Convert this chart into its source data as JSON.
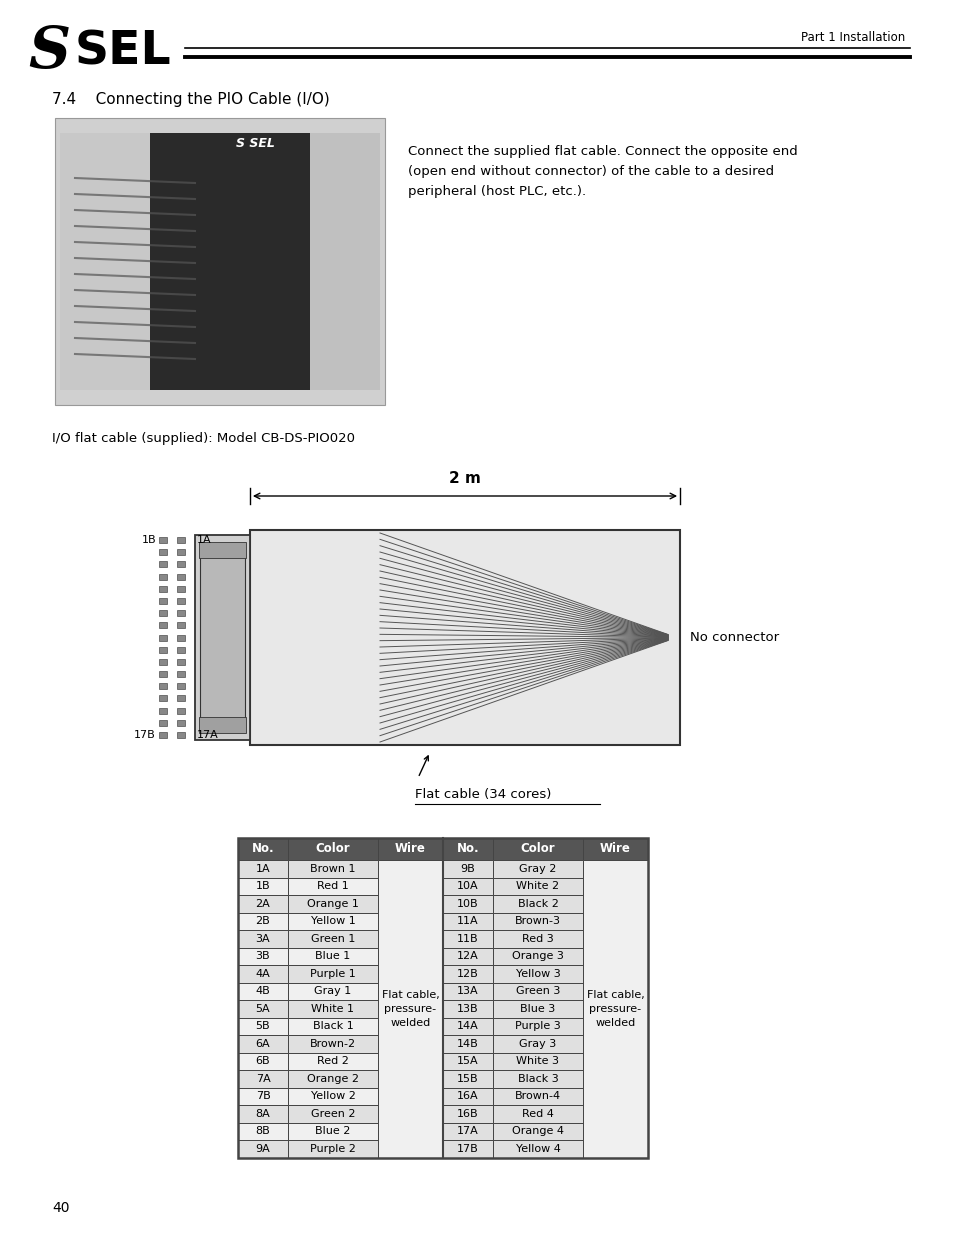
{
  "page_number": "40",
  "header_text": "Part 1 Installation",
  "section_title": "7.4    Connecting the PIO Cable (I/O)",
  "body_text": "Connect the supplied flat cable. Connect the opposite end\n(open end without connector) of the cable to a desired\nperipheral (host PLC, etc.).",
  "cable_label": "I/O flat cable (supplied): Model CB-DS-PIO020",
  "dim_label": "2 m",
  "label_1b": "1B",
  "label_1a": "1A",
  "label_17b": "17B",
  "label_17a": "17A",
  "no_connector_label": "No connector",
  "flat_cable_label": "Flat cable (34 cores)",
  "table_headers_left": [
    "No.",
    "Color",
    "Wire"
  ],
  "table_headers_right": [
    "No.",
    "Color",
    "Wire"
  ],
  "table_data_left": [
    [
      "1A",
      "Brown 1"
    ],
    [
      "1B",
      "Red 1"
    ],
    [
      "2A",
      "Orange 1"
    ],
    [
      "2B",
      "Yellow 1"
    ],
    [
      "3A",
      "Green 1"
    ],
    [
      "3B",
      "Blue 1"
    ],
    [
      "4A",
      "Purple 1"
    ],
    [
      "4B",
      "Gray 1"
    ],
    [
      "5A",
      "White 1"
    ],
    [
      "5B",
      "Black 1"
    ],
    [
      "6A",
      "Brown-2"
    ],
    [
      "6B",
      "Red 2"
    ],
    [
      "7A",
      "Orange 2"
    ],
    [
      "7B",
      "Yellow 2"
    ],
    [
      "8A",
      "Green 2"
    ],
    [
      "8B",
      "Blue 2"
    ],
    [
      "9A",
      "Purple 2"
    ]
  ],
  "table_data_right": [
    [
      "9B",
      "Gray 2"
    ],
    [
      "10A",
      "White 2"
    ],
    [
      "10B",
      "Black 2"
    ],
    [
      "11A",
      "Brown-3"
    ],
    [
      "11B",
      "Red 3"
    ],
    [
      "12A",
      "Orange 3"
    ],
    [
      "12B",
      "Yellow 3"
    ],
    [
      "13A",
      "Green 3"
    ],
    [
      "13B",
      "Blue 3"
    ],
    [
      "14A",
      "Purple 3"
    ],
    [
      "14B",
      "Gray 3"
    ],
    [
      "15A",
      "White 3"
    ],
    [
      "15B",
      "Black 3"
    ],
    [
      "16A",
      "Brown-4"
    ],
    [
      "16B",
      "Red 4"
    ],
    [
      "17A",
      "Orange 4"
    ],
    [
      "17B",
      "Yellow 4"
    ]
  ],
  "wire_label_left": "Flat cable,\npressure-\nwelded",
  "wire_label_right": "Flat cable,\npressure-\nwelded",
  "bg_color": "#ffffff",
  "table_header_bg": "#555555",
  "table_header_fg": "#ffffff",
  "table_row_bg_odd": "#e0e0e0",
  "table_row_bg_even": "#f0f0f0",
  "table_border": "#444444",
  "diagram_fill": "#e8e8e8",
  "diagram_border": "#333333"
}
